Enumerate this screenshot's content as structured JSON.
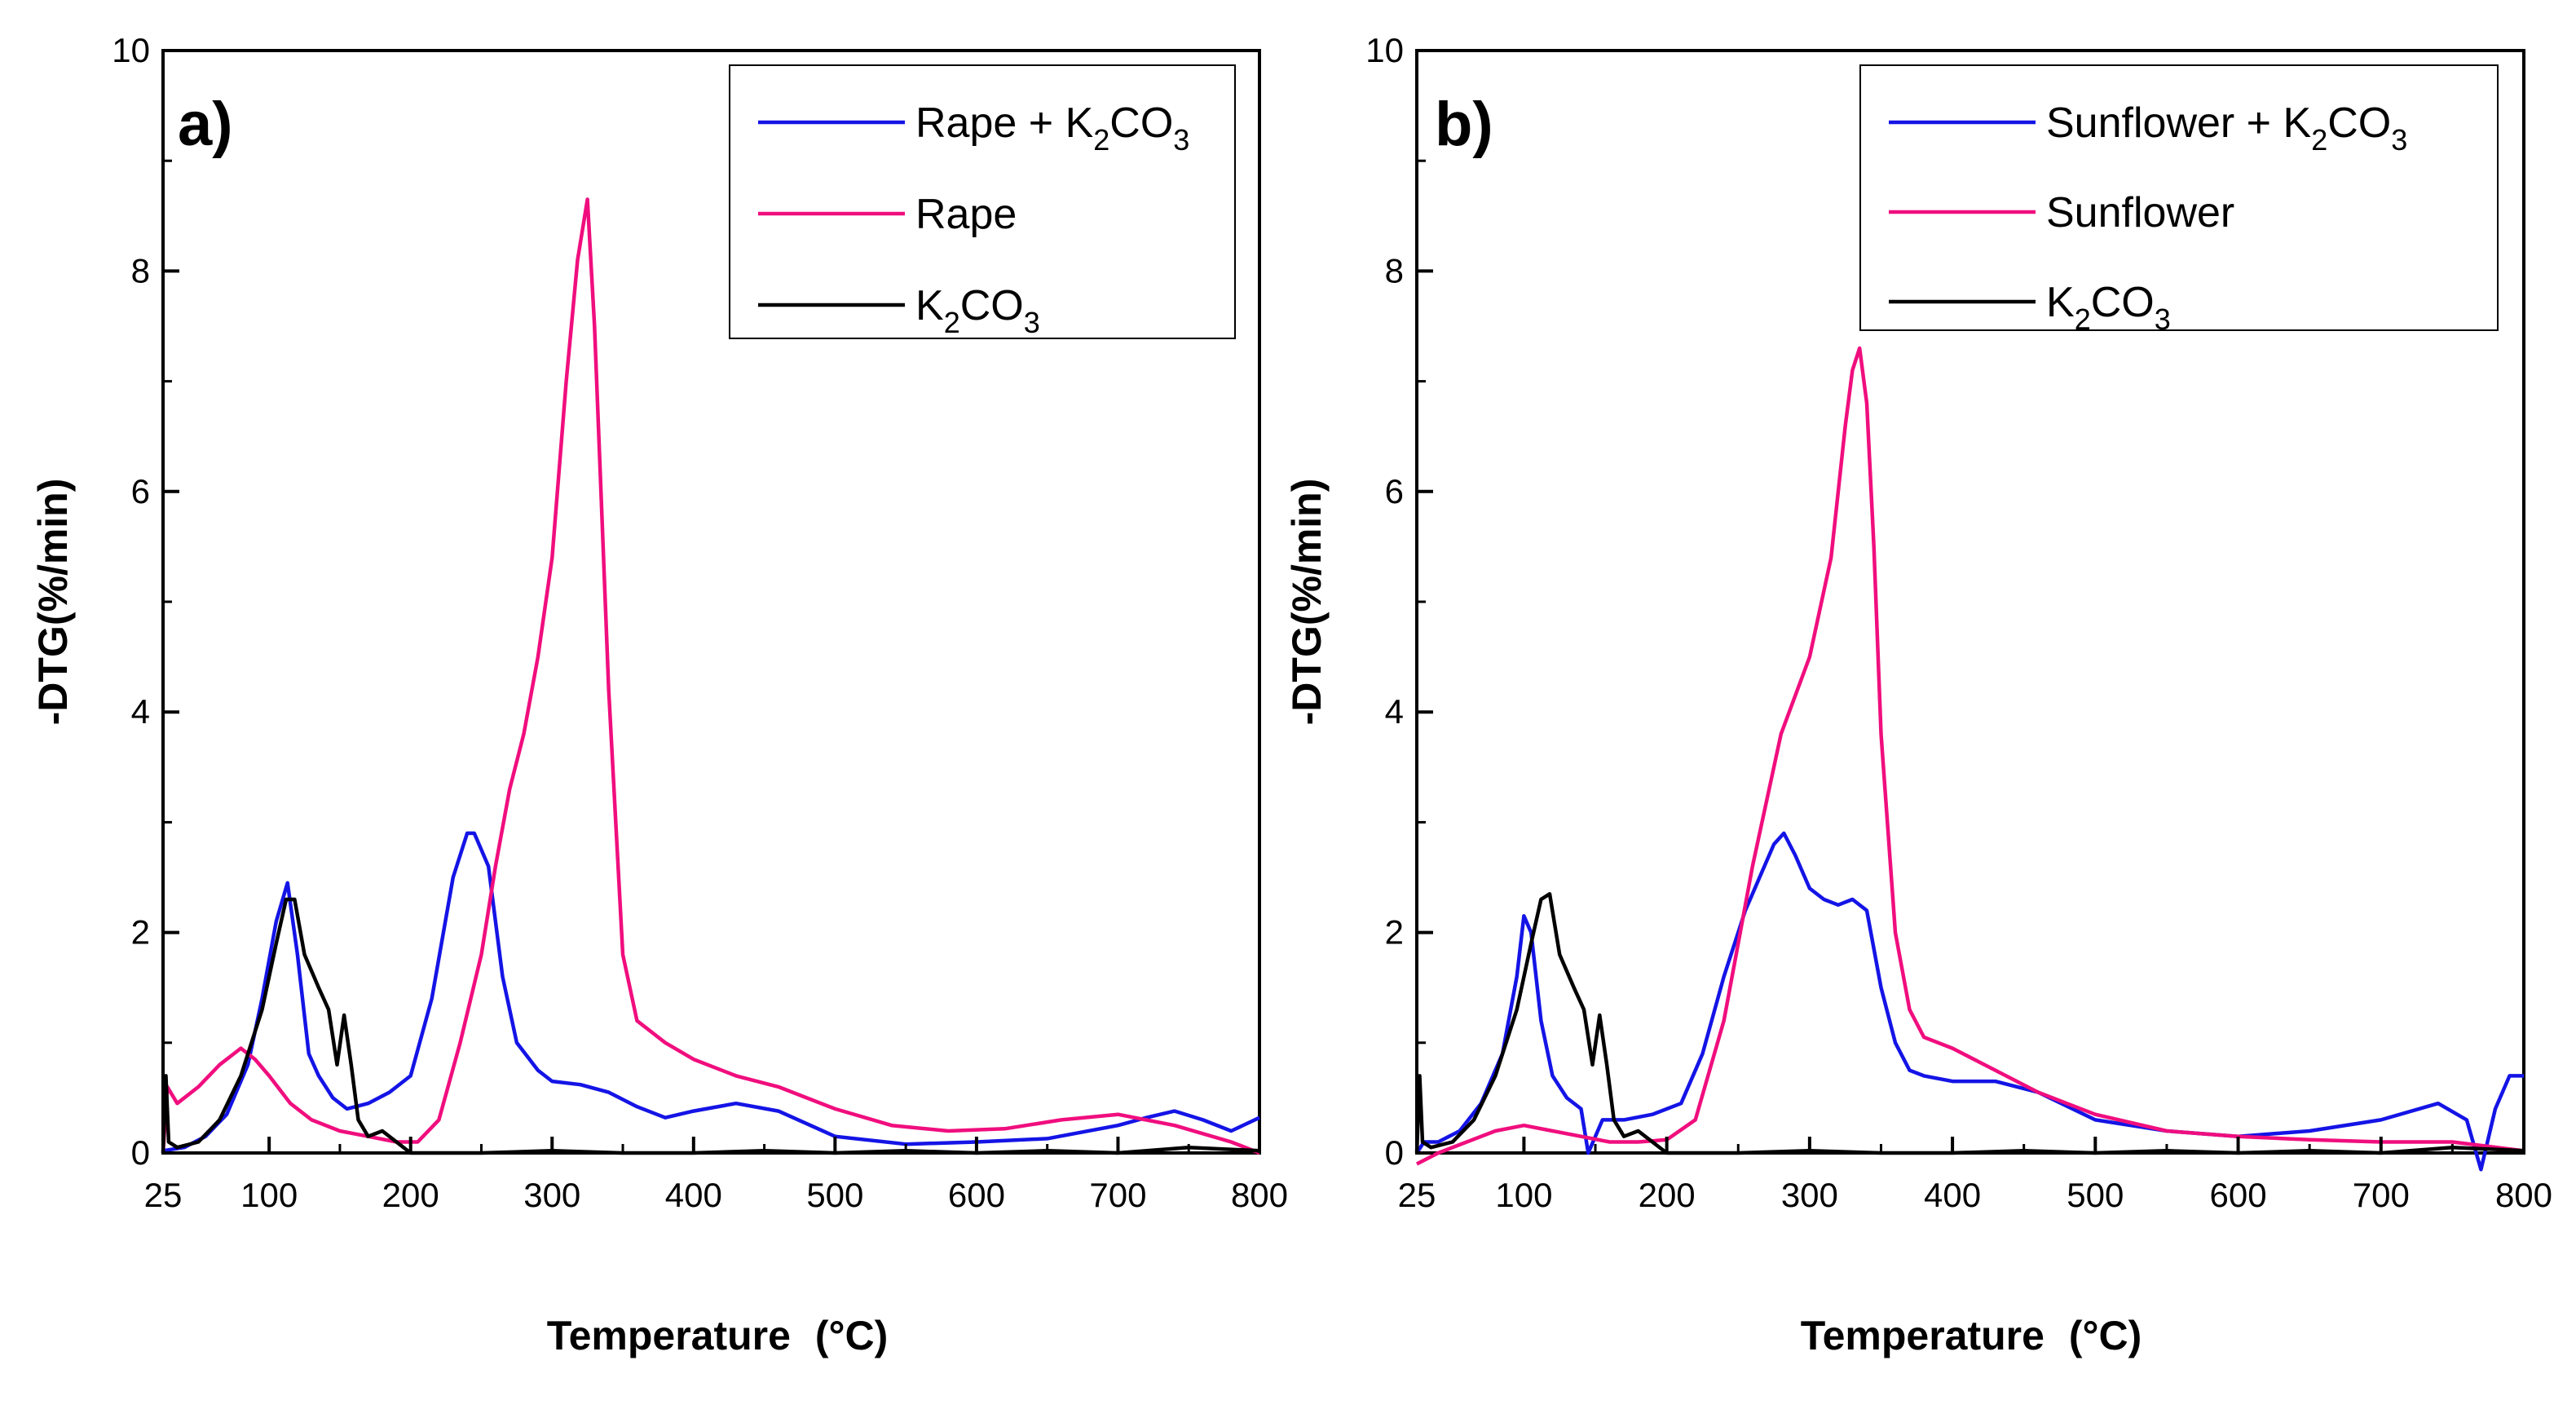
{
  "chart_data": [
    {
      "type": "line",
      "panel_label": "a)",
      "xlabel": "Temperature",
      "xunit": "(°C)",
      "ylabel": "-DTG(%/min)",
      "xlim": [
        25,
        800
      ],
      "ylim": [
        0,
        10
      ],
      "xticks": [
        25,
        100,
        200,
        300,
        400,
        500,
        600,
        700,
        800
      ],
      "yticks": [
        0,
        2,
        4,
        6,
        8,
        10
      ],
      "legend_position": "top-right",
      "series": [
        {
          "name": "Rape + K2CO3",
          "legend_main": "Rape + K",
          "legend_sub": "2",
          "legend_main2": "CO",
          "legend_sub2": "3",
          "color": "#1414e6",
          "x": [
            25,
            40,
            55,
            70,
            85,
            95,
            105,
            113,
            120,
            128,
            135,
            145,
            155,
            170,
            185,
            200,
            215,
            230,
            240,
            245,
            255,
            265,
            275,
            290,
            300,
            320,
            340,
            360,
            380,
            400,
            430,
            460,
            500,
            550,
            600,
            650,
            700,
            720,
            740,
            760,
            780,
            800
          ],
          "y": [
            0.02,
            0.05,
            0.15,
            0.35,
            0.8,
            1.4,
            2.1,
            2.45,
            1.8,
            0.9,
            0.7,
            0.5,
            0.4,
            0.45,
            0.55,
            0.7,
            1.4,
            2.5,
            2.9,
            2.9,
            2.6,
            1.6,
            1.0,
            0.75,
            0.65,
            0.62,
            0.55,
            0.42,
            0.32,
            0.38,
            0.45,
            0.38,
            0.15,
            0.08,
            0.1,
            0.13,
            0.25,
            0.32,
            0.38,
            0.3,
            0.2,
            0.32
          ]
        },
        {
          "name": "Rape",
          "legend_main": "Rape",
          "legend_sub": "",
          "legend_main2": "",
          "legend_sub2": "",
          "color": "#f00e7e",
          "x": [
            25,
            28,
            35,
            50,
            65,
            80,
            90,
            100,
            115,
            130,
            150,
            170,
            190,
            205,
            220,
            235,
            250,
            260,
            270,
            280,
            290,
            300,
            310,
            318,
            325,
            330,
            340,
            350,
            360,
            380,
            400,
            430,
            460,
            500,
            540,
            580,
            620,
            660,
            700,
            740,
            780,
            800
          ],
          "y": [
            0.0,
            0.6,
            0.45,
            0.6,
            0.8,
            0.95,
            0.85,
            0.7,
            0.45,
            0.3,
            0.2,
            0.15,
            0.1,
            0.1,
            0.3,
            1.0,
            1.8,
            2.6,
            3.3,
            3.8,
            4.5,
            5.4,
            7.0,
            8.1,
            8.65,
            7.5,
            4.2,
            1.8,
            1.2,
            1.0,
            0.85,
            0.7,
            0.6,
            0.4,
            0.25,
            0.2,
            0.22,
            0.3,
            0.35,
            0.25,
            0.1,
            0.0
          ]
        },
        {
          "name": "K2CO3",
          "legend_main": "K",
          "legend_sub": "2",
          "legend_main2": "CO",
          "legend_sub2": "3",
          "color": "#000000",
          "x": [
            25,
            27,
            29,
            35,
            50,
            65,
            80,
            95,
            105,
            112,
            118,
            125,
            135,
            142,
            148,
            153,
            158,
            163,
            170,
            180,
            200,
            250,
            300,
            350,
            400,
            450,
            500,
            550,
            600,
            650,
            700,
            750,
            800
          ],
          "y": [
            0.0,
            0.7,
            0.1,
            0.05,
            0.1,
            0.3,
            0.7,
            1.3,
            1.9,
            2.3,
            2.3,
            1.8,
            1.5,
            1.3,
            0.8,
            1.25,
            0.8,
            0.3,
            0.15,
            0.2,
            0.0,
            0.0,
            0.02,
            0.0,
            0.0,
            0.02,
            0.0,
            0.02,
            0.0,
            0.02,
            0.0,
            0.05,
            0.02
          ]
        }
      ]
    },
    {
      "type": "line",
      "panel_label": "b)",
      "xlabel": "Temperature",
      "xunit": "(°C)",
      "ylabel": "-DTG(%/min)",
      "xlim": [
        25,
        800
      ],
      "ylim": [
        0,
        10
      ],
      "xticks": [
        25,
        100,
        200,
        300,
        400,
        500,
        600,
        700,
        800
      ],
      "yticks": [
        0,
        2,
        4,
        6,
        8,
        10
      ],
      "legend_position": "top-right",
      "series": [
        {
          "name": "Sunflower + K2CO3",
          "legend_main": "Sunflower + K",
          "legend_sub": "2",
          "legend_main2": "CO",
          "legend_sub2": "3",
          "color": "#1414e6",
          "x": [
            25,
            30,
            40,
            55,
            70,
            85,
            95,
            100,
            105,
            112,
            120,
            130,
            140,
            145,
            155,
            170,
            190,
            210,
            225,
            240,
            255,
            265,
            275,
            282,
            290,
            300,
            310,
            320,
            330,
            340,
            350,
            360,
            370,
            380,
            400,
            430,
            460,
            500,
            550,
            600,
            650,
            700,
            740,
            760,
            770,
            780,
            790,
            800
          ],
          "y": [
            0.0,
            0.1,
            0.1,
            0.2,
            0.45,
            0.9,
            1.6,
            2.15,
            2.0,
            1.2,
            0.7,
            0.5,
            0.4,
            0.0,
            0.3,
            0.3,
            0.35,
            0.45,
            0.9,
            1.6,
            2.2,
            2.5,
            2.8,
            2.9,
            2.7,
            2.4,
            2.3,
            2.25,
            2.3,
            2.2,
            1.5,
            1.0,
            0.75,
            0.7,
            0.65,
            0.65,
            0.55,
            0.3,
            0.2,
            0.15,
            0.2,
            0.3,
            0.45,
            0.3,
            -0.15,
            0.4,
            0.7,
            0.7
          ]
        },
        {
          "name": "Sunflower",
          "legend_main": "Sunflower",
          "legend_sub": "",
          "legend_main2": "",
          "legend_sub2": "",
          "color": "#f00e7e",
          "x": [
            25,
            40,
            60,
            80,
            100,
            120,
            140,
            160,
            180,
            200,
            220,
            240,
            260,
            280,
            300,
            315,
            325,
            330,
            335,
            340,
            345,
            350,
            360,
            370,
            380,
            400,
            430,
            460,
            500,
            550,
            600,
            650,
            700,
            750,
            800
          ],
          "y": [
            -0.1,
            0.0,
            0.1,
            0.2,
            0.25,
            0.2,
            0.15,
            0.1,
            0.1,
            0.12,
            0.3,
            1.2,
            2.6,
            3.8,
            4.5,
            5.4,
            6.6,
            7.1,
            7.3,
            6.8,
            5.5,
            3.8,
            2.0,
            1.3,
            1.05,
            0.95,
            0.75,
            0.55,
            0.35,
            0.2,
            0.15,
            0.12,
            0.1,
            0.1,
            0.02
          ]
        },
        {
          "name": "K2CO3",
          "legend_main": "K",
          "legend_sub": "2",
          "legend_main2": "CO",
          "legend_sub2": "3",
          "color": "#000000",
          "x": [
            25,
            27,
            29,
            35,
            50,
            65,
            80,
            95,
            105,
            112,
            118,
            125,
            135,
            142,
            148,
            153,
            158,
            163,
            170,
            180,
            200,
            250,
            300,
            350,
            400,
            450,
            500,
            550,
            600,
            650,
            700,
            750,
            800
          ],
          "y": [
            0.0,
            0.7,
            0.1,
            0.05,
            0.1,
            0.3,
            0.7,
            1.3,
            1.9,
            2.3,
            2.35,
            1.8,
            1.5,
            1.3,
            0.8,
            1.25,
            0.8,
            0.3,
            0.15,
            0.2,
            0.0,
            0.0,
            0.02,
            0.0,
            0.0,
            0.02,
            0.0,
            0.02,
            0.0,
            0.02,
            0.0,
            0.05,
            0.02
          ]
        }
      ]
    }
  ]
}
